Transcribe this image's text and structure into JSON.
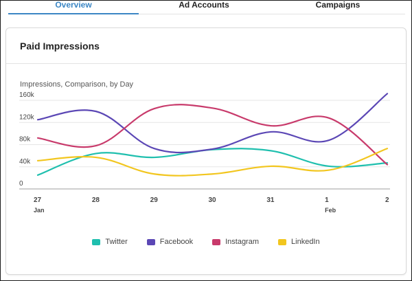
{
  "tabs": [
    {
      "label": "Overview",
      "active": true
    },
    {
      "label": "Ad Accounts",
      "active": false
    },
    {
      "label": "Campaigns",
      "active": false
    }
  ],
  "card": {
    "title": "Paid Impressions",
    "chart_subtitle": "Impressions, Comparison, by Day"
  },
  "chart_data": {
    "type": "line",
    "title": "Impressions, Comparison, by Day",
    "x": [
      "27",
      "28",
      "29",
      "30",
      "31",
      "1",
      "2"
    ],
    "x_sublabels": [
      "Jan",
      "",
      "",
      "",
      "",
      "Feb",
      ""
    ],
    "y_ticks": [
      "0",
      "40k",
      "80k",
      "120k",
      "160k"
    ],
    "ylim": [
      0,
      160000
    ],
    "grid": true,
    "legend_position": "bottom",
    "series": [
      {
        "name": "Twitter",
        "color": "#1fbfae",
        "values": [
          25000,
          64000,
          57000,
          71000,
          69000,
          41000,
          47000
        ]
      },
      {
        "name": "Facebook",
        "color": "#5b47b5",
        "values": [
          125000,
          140000,
          73000,
          72000,
          103000,
          88000,
          172000
        ]
      },
      {
        "name": "Instagram",
        "color": "#c83a6b",
        "values": [
          92000,
          78000,
          145000,
          146000,
          114000,
          128000,
          44000
        ]
      },
      {
        "name": "LinkedIn",
        "color": "#f2c61f",
        "values": [
          51000,
          57000,
          27000,
          27000,
          41000,
          34000,
          73000
        ]
      }
    ]
  }
}
